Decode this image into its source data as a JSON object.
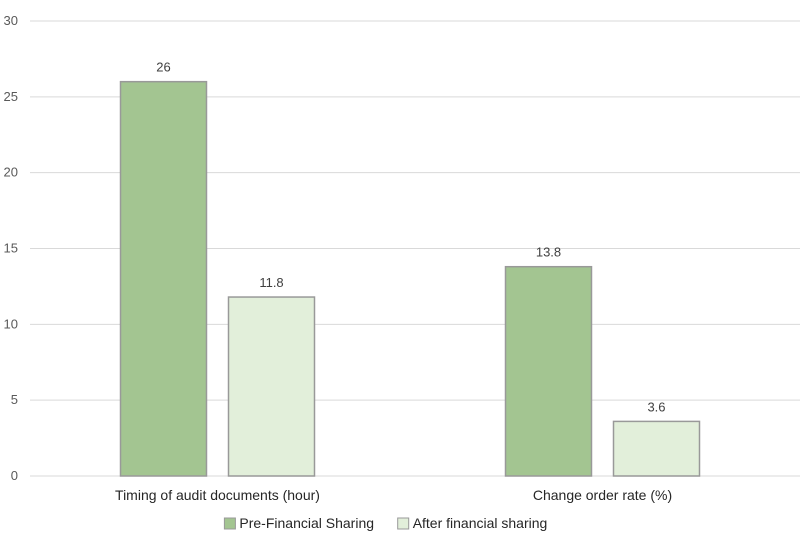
{
  "chart_data": {
    "type": "bar",
    "categories": [
      "Timing of audit documents (hour)",
      "Change order rate (%)"
    ],
    "series": [
      {
        "name": "Pre-Financial Sharing",
        "values": [
          26,
          13.8
        ],
        "color": "#a3c591"
      },
      {
        "name": "After financial sharing",
        "values": [
          11.8,
          3.6
        ],
        "color": "#e2efda"
      }
    ],
    "ylim": [
      0,
      30
    ],
    "yticks": [
      0,
      5,
      10,
      15,
      20,
      25,
      30
    ],
    "grid": true,
    "legend": "bottom",
    "bar_border_color": "#999999"
  }
}
